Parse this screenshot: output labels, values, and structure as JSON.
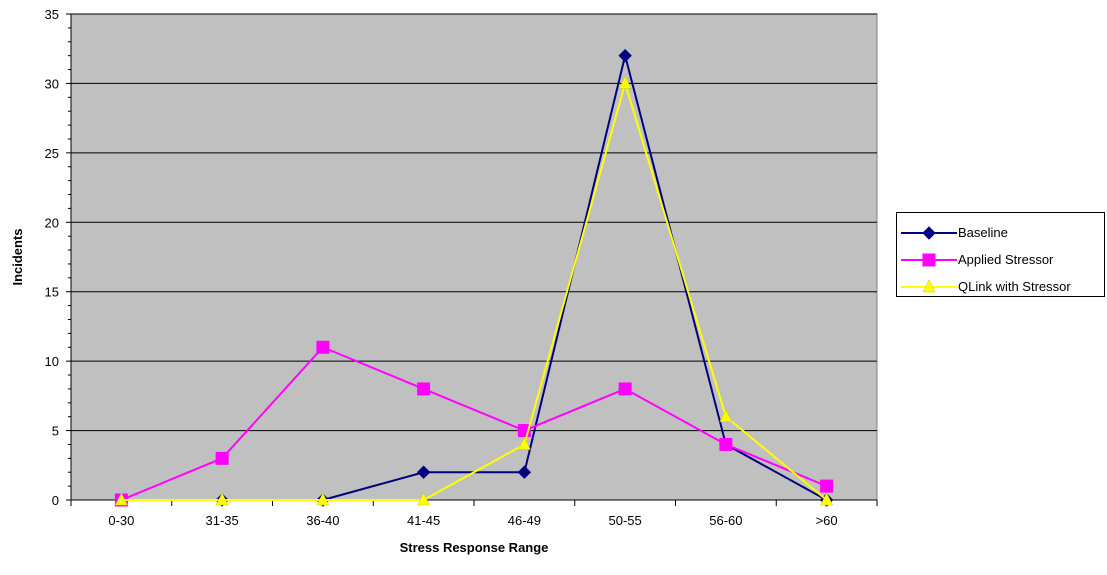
{
  "chart_data": {
    "type": "line",
    "categories": [
      "0-30",
      "31-35",
      "36-40",
      "41-45",
      "46-49",
      "50-55",
      "56-60",
      ">60"
    ],
    "series": [
      {
        "name": "Baseline",
        "values": [
          0,
          0,
          0,
          2,
          2,
          32,
          4,
          0
        ],
        "color": "#000080",
        "marker": "diamond"
      },
      {
        "name": "Applied Stressor",
        "values": [
          0,
          3,
          11,
          8,
          5,
          8,
          4,
          1
        ],
        "color": "#ff00ff",
        "marker": "square"
      },
      {
        "name": "QLink with Stressor",
        "values": [
          0,
          0,
          0,
          0,
          4,
          30,
          6,
          0
        ],
        "color": "#ffff00",
        "marker": "triangle"
      }
    ],
    "xlabel": "Stress Response Range",
    "ylabel": "Incidents",
    "ylim": [
      0,
      35
    ],
    "yticks": [
      0,
      5,
      10,
      15,
      20,
      25,
      30,
      35
    ],
    "grid": true,
    "plot_background": "#c0c0c0",
    "legend_position": "right"
  }
}
